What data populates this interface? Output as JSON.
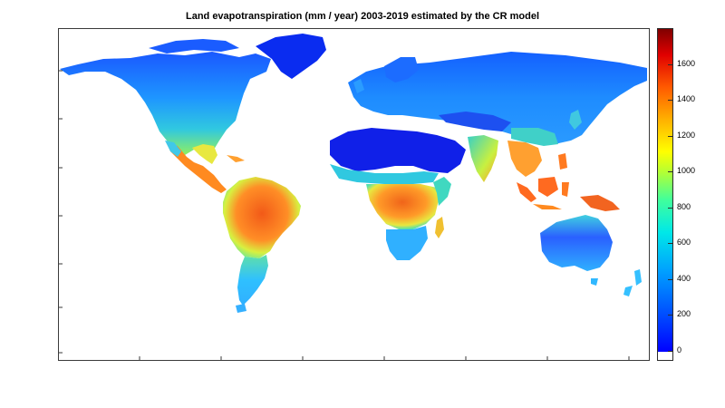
{
  "title": "Land evapotranspiration (mm / year) 2003-2019 estimated by the CR model",
  "colorbar": {
    "ticks": [
      "1600",
      "1400",
      "1200",
      "1000",
      "800",
      "600",
      "400",
      "200",
      "0"
    ],
    "tick_values": [
      1600,
      1400,
      1200,
      1000,
      800,
      600,
      400,
      200,
      0
    ],
    "range": [
      0,
      1800
    ],
    "colormap": "jet",
    "colors": [
      "#0000ff",
      "#0050ff",
      "#00a0ff",
      "#00e8e8",
      "#40ff9c",
      "#b8ff30",
      "#ffff00",
      "#ffb000",
      "#ff5a00",
      "#e00000",
      "#800000"
    ]
  },
  "map": {
    "type": "global choropleth raster",
    "axis_tick_labels_visible": false,
    "regions": [
      {
        "name": "North America (north)",
        "color": "#1e78ff"
      },
      {
        "name": "Greenland",
        "color": "#0a2cf0"
      },
      {
        "name": "North America (east)",
        "color": "#3fd0c0"
      },
      {
        "name": "Central America",
        "color": "#ff8a20"
      },
      {
        "name": "South America (Amazon)",
        "color": "#f06a20"
      },
      {
        "name": "South America (south)",
        "color": "#35c8ff"
      },
      {
        "name": "Europe",
        "color": "#1a8cff"
      },
      {
        "name": "Sahara / Arabia",
        "color": "#1020e8"
      },
      {
        "name": "Central Africa",
        "color": "#f06a20"
      },
      {
        "name": "Southern Africa",
        "color": "#35b8ff"
      },
      {
        "name": "Russia / Siberia",
        "color": "#1a8cff"
      },
      {
        "name": "Central Asia",
        "color": "#1d50f0"
      },
      {
        "name": "India",
        "color": "#47d8a8"
      },
      {
        "name": "South-East Asia",
        "color": "#ff8a20"
      },
      {
        "name": "Indonesia / New Guinea",
        "color": "#ff6a20"
      },
      {
        "name": "Australia",
        "color": "#2a70ff"
      },
      {
        "name": "New Zealand",
        "color": "#35c0ff"
      }
    ]
  }
}
